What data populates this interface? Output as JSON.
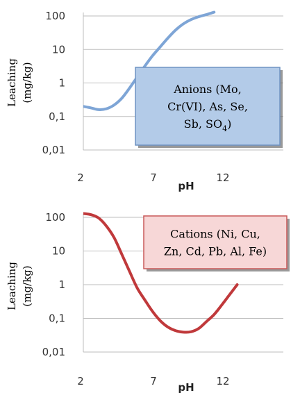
{
  "chart_data": [
    {
      "type": "line",
      "title": "",
      "xlabel": "pH",
      "ylabel_line1": "Leaching",
      "ylabel_line2": "(mg/kg)",
      "x_ticks": [
        "2",
        "7",
        "12"
      ],
      "y_ticks": [
        "100",
        "10",
        "1",
        "0,1",
        "0,01"
      ],
      "y_scale": "log",
      "xlim": [
        2,
        15
      ],
      "ylim": [
        0.01,
        100
      ],
      "grid": "horizontal",
      "color": "#7ea5d6",
      "series": [
        {
          "x": [
            2,
            2.5,
            3,
            3.5,
            4,
            4.5,
            5,
            5.5,
            6,
            6.5,
            7,
            7.5,
            8,
            8.5,
            9,
            9.5,
            10,
            10.5
          ],
          "y": [
            0.2,
            0.18,
            0.16,
            0.17,
            0.22,
            0.35,
            0.7,
            1.5,
            3.2,
            6.5,
            12,
            22,
            38,
            58,
            78,
            95,
            110,
            130
          ]
        }
      ],
      "annotation": {
        "lines": [
          "Anions (Mo,",
          "Cr(VI), As, Se,",
          "Sb, SO"
        ],
        "subscript": "4",
        "suffix": ")",
        "fill": "#b3cbe8",
        "stroke": "#6f93c2"
      }
    },
    {
      "type": "line",
      "title": "",
      "xlabel": "pH",
      "ylabel_line1": "Leaching",
      "ylabel_line2": "(mg/kg)",
      "x_ticks": [
        "2",
        "7",
        "12"
      ],
      "y_ticks": [
        "100",
        "10",
        "1",
        "0,1",
        "0,01"
      ],
      "y_scale": "log",
      "xlim": [
        2,
        15
      ],
      "ylim": [
        0.01,
        100
      ],
      "grid": "horizontal",
      "color": "#c0393b",
      "series": [
        {
          "x": [
            2,
            2.5,
            3,
            3.5,
            4,
            4.5,
            5,
            5.5,
            6,
            6.5,
            7,
            7.5,
            8,
            8.5,
            9,
            9.5,
            10,
            10.5,
            11,
            11.5,
            12
          ],
          "y": [
            130,
            120,
            95,
            55,
            25,
            8,
            2.5,
            0.8,
            0.35,
            0.16,
            0.085,
            0.055,
            0.043,
            0.039,
            0.04,
            0.05,
            0.08,
            0.13,
            0.25,
            0.5,
            1
          ]
        }
      ],
      "annotation": {
        "lines": [
          "Cations (Ni, Cu,",
          "Zn, Cd, Pb, Al, Fe)"
        ],
        "fill": "#f7d7d7",
        "stroke": "#c95858"
      }
    }
  ]
}
